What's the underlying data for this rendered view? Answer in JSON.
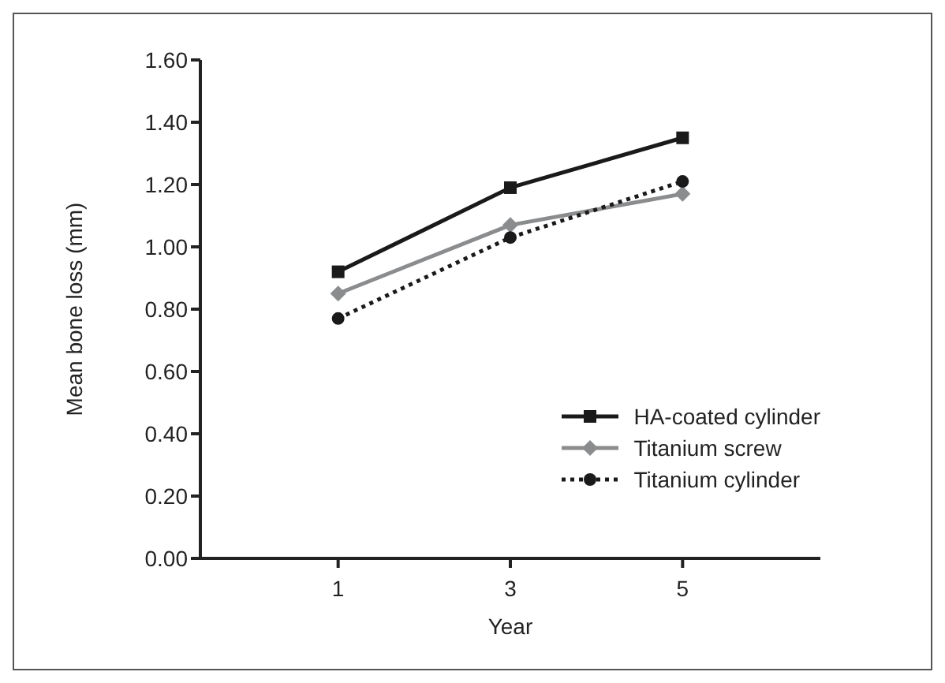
{
  "chart_data": {
    "type": "line",
    "xlabel": "Year",
    "ylabel": "Mean bone loss (mm)",
    "categories": [
      "1",
      "3",
      "5"
    ],
    "series": [
      {
        "name": "HA-coated cylinder",
        "color": "#1a1a1a",
        "values": [
          0.92,
          1.19,
          1.35
        ],
        "marker": "square",
        "line_style": "solid"
      },
      {
        "name": "Titanium screw",
        "color": "#8a8c8e",
        "values": [
          0.85,
          1.07,
          1.17
        ],
        "marker": "diamond",
        "line_style": "solid"
      },
      {
        "name": "Titanium cylinder",
        "color": "#1a1a1a",
        "values": [
          0.77,
          1.03,
          1.21
        ],
        "marker": "circle",
        "line_style": "dotted"
      }
    ],
    "ylim": [
      0,
      1.6
    ],
    "yticks": [
      {
        "value": 0,
        "label": "0.00"
      },
      {
        "value": 0.2,
        "label": "0.20"
      },
      {
        "value": 0.4,
        "label": "0.40"
      },
      {
        "value": 0.6,
        "label": "0.60"
      },
      {
        "value": 0.8,
        "label": "0.80"
      },
      {
        "value": 1.0,
        "label": "1.00"
      },
      {
        "value": 1.2,
        "label": "1.20"
      },
      {
        "value": 1.4,
        "label": "1.40"
      },
      {
        "value": 1.6,
        "label": "1.60"
      }
    ],
    "grid": false,
    "legend": "bottom right"
  }
}
